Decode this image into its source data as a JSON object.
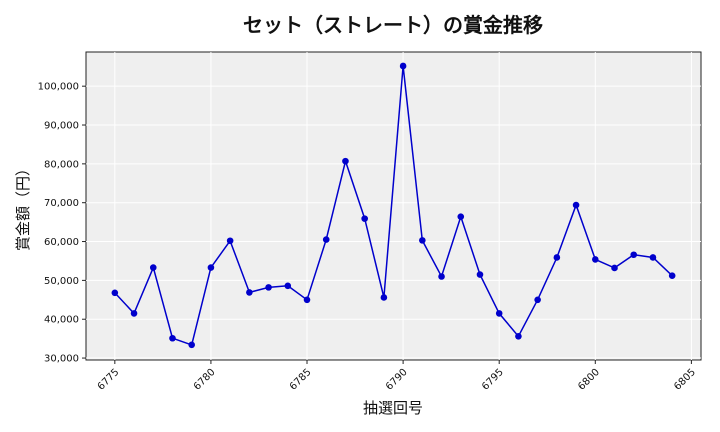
{
  "chart_data": {
    "type": "line",
    "title": "セット（ストレート）の賞金推移",
    "xlabel": "抽選回号",
    "ylabel": "賞金額（円）",
    "xlim": [
      6773.5,
      6805.5
    ],
    "ylim": [
      29500,
      108800
    ],
    "x_ticks": [
      6775,
      6780,
      6785,
      6790,
      6795,
      6800,
      6805
    ],
    "y_ticks": [
      30000,
      40000,
      50000,
      60000,
      70000,
      80000,
      90000,
      100000
    ],
    "y_tick_labels": [
      "30,000",
      "40,000",
      "50,000",
      "60,000",
      "70,000",
      "80,000",
      "90,000",
      "100,000"
    ],
    "grid": true,
    "series": [
      {
        "color": "#0000cc",
        "x": [
          6775,
          6776,
          6777,
          6778,
          6779,
          6780,
          6781,
          6782,
          6783,
          6784,
          6785,
          6786,
          6787,
          6788,
          6789,
          6790,
          6791,
          6792,
          6793,
          6794,
          6795,
          6796,
          6797,
          6798,
          6799,
          6800,
          6801,
          6802,
          6803,
          6804
        ],
        "values": [
          46800,
          41500,
          53300,
          35100,
          33400,
          53300,
          60200,
          46900,
          48200,
          48600,
          45000,
          60500,
          80700,
          65900,
          45600,
          105200,
          60300,
          51000,
          66400,
          51500,
          41500,
          35600,
          45000,
          55900,
          69400,
          55400,
          53200,
          56600,
          55900,
          51200
        ]
      }
    ]
  }
}
